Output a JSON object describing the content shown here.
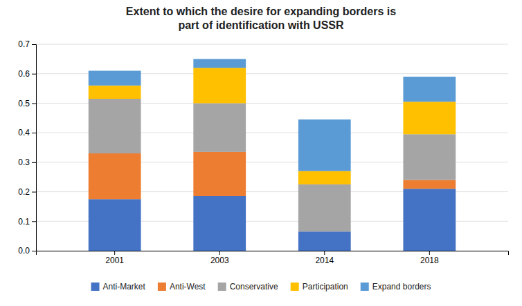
{
  "chart_data": {
    "type": "bar",
    "stacked": true,
    "title": "Extent to which the desire for expanding borders is\npart of identification with USSR",
    "categories": [
      "2001",
      "2003",
      "2014",
      "2018"
    ],
    "series": [
      {
        "name": "Anti-Market",
        "color": "#4472C4",
        "values": [
          0.175,
          0.185,
          0.065,
          0.21
        ]
      },
      {
        "name": "Anti-West",
        "color": "#ED7D31",
        "values": [
          0.155,
          0.15,
          0.0,
          0.03
        ]
      },
      {
        "name": "Conservative",
        "color": "#A5A5A5",
        "values": [
          0.185,
          0.165,
          0.16,
          0.155
        ]
      },
      {
        "name": "Participation",
        "color": "#FFC000",
        "values": [
          0.045,
          0.12,
          0.045,
          0.11
        ]
      },
      {
        "name": "Expand borders",
        "color": "#5B9BD5",
        "values": [
          0.05,
          0.03,
          0.175,
          0.085
        ]
      }
    ],
    "ylim": [
      0,
      0.7
    ],
    "yticks": [
      {
        "value": 0.0,
        "label": "0.0"
      },
      0.1,
      0.2,
      0.3,
      0.4,
      0.5,
      0.6,
      0.7
    ],
    "grid": true,
    "legend": "bottom"
  }
}
